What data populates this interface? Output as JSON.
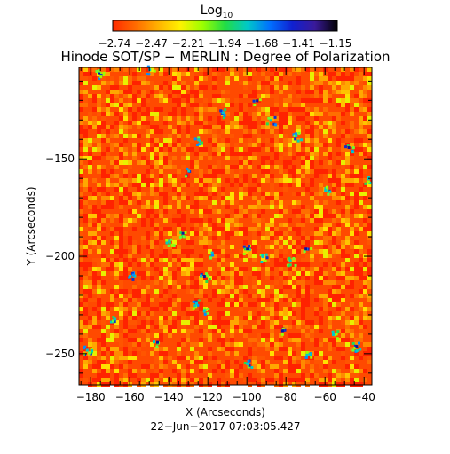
{
  "chart_data": {
    "type": "heatmap",
    "title": "Hinode SOT/SP − MERLIN : Degree of Polarization",
    "colorbar": {
      "label_base": "Log",
      "label_sub": "10",
      "ticks": [
        "−2.74",
        "−2.47",
        "−2.21",
        "−1.94",
        "−1.68",
        "−1.41",
        "−1.15"
      ],
      "range": [
        -2.74,
        -1.15
      ],
      "colors": [
        "#ff2a00",
        "#ff6a00",
        "#ffb000",
        "#fff200",
        "#9cff00",
        "#22dd44",
        "#00c8c8",
        "#0070ff",
        "#1020d0",
        "#3a1a9a",
        "#000000"
      ]
    },
    "xlabel": "X (Arcseconds)",
    "ylabel": "Y (Arcseconds)",
    "xlim": [
      -186,
      -36
    ],
    "ylim": [
      -266,
      -103
    ],
    "xticks": [
      -180,
      -160,
      -140,
      -120,
      -100,
      -80,
      -60,
      -40
    ],
    "xtick_labels": [
      "−180",
      "−160",
      "−140",
      "−120",
      "−100",
      "−80",
      "−60",
      "−40"
    ],
    "yticks": [
      -150,
      -200,
      -250
    ],
    "ytick_labels": [
      "−150",
      "−200",
      "−250"
    ],
    "footer": "22−Jun−2017 07:03:05.427"
  }
}
